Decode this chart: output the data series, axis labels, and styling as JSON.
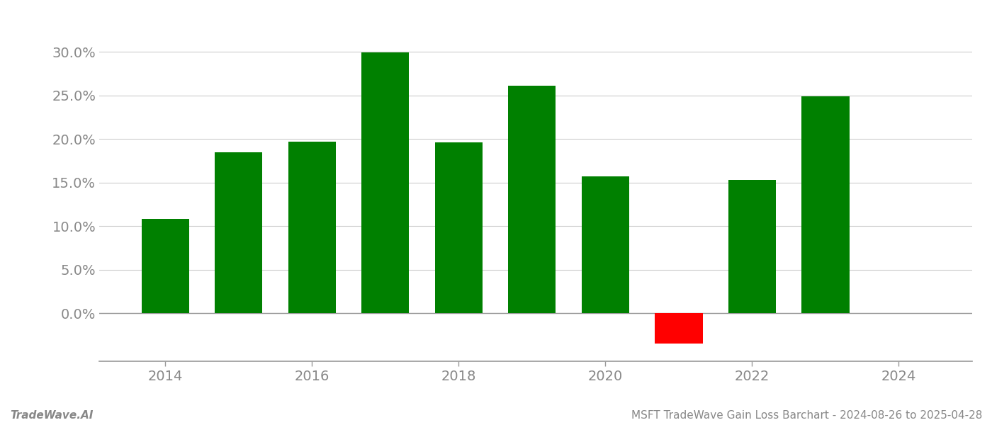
{
  "years": [
    2014,
    2015,
    2016,
    2017,
    2018,
    2019,
    2020,
    2021,
    2022,
    2023
  ],
  "values": [
    0.108,
    0.185,
    0.197,
    0.299,
    0.196,
    0.261,
    0.157,
    -0.035,
    0.153,
    0.249
  ],
  "bar_colors": [
    "#008000",
    "#008000",
    "#008000",
    "#008000",
    "#008000",
    "#008000",
    "#008000",
    "#ff0000",
    "#008000",
    "#008000"
  ],
  "ylim": [
    -0.055,
    0.335
  ],
  "yticks": [
    0.0,
    0.05,
    0.1,
    0.15,
    0.2,
    0.25,
    0.3
  ],
  "footer_left": "TradeWave.AI",
  "footer_right": "MSFT TradeWave Gain Loss Barchart - 2024-08-26 to 2025-04-28",
  "background_color": "#ffffff",
  "grid_color": "#cccccc",
  "bar_width": 0.65,
  "x_tick_years": [
    2014,
    2016,
    2018,
    2020,
    2022,
    2024
  ],
  "xlim_left": 2013.1,
  "xlim_right": 2025.0,
  "axis_color": "#999999",
  "tick_label_color": "#888888",
  "tick_label_fontsize": 14,
  "footer_fontsize": 11,
  "grid_linewidth": 0.8
}
